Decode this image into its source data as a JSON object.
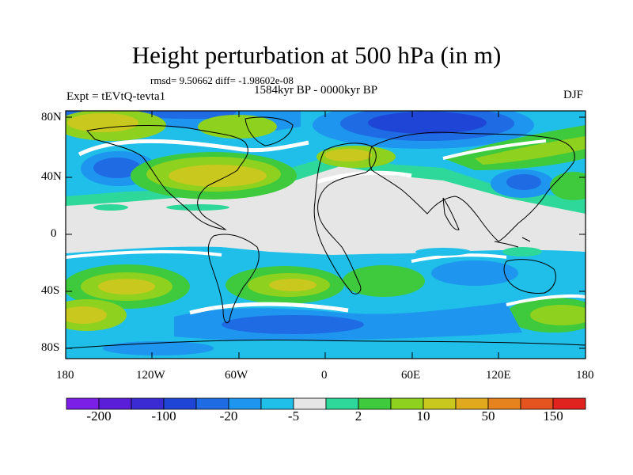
{
  "figure": {
    "title": "Height perturbation at 500 hPa (in m)",
    "stats": "rmsd= 9.50662 diff= -1.98602e-08",
    "period": "1584kyr BP - 0000kyr BP",
    "experiment": "Expt = tEVtQ-tevta1",
    "season": "DJF"
  },
  "axes": {
    "lat_ticks": [
      "80N",
      "40N",
      "0",
      "40S",
      "80S"
    ],
    "lon_ticks": [
      "180",
      "120W",
      "60W",
      "0",
      "60E",
      "120E",
      "180"
    ]
  },
  "colorbar": {
    "colors": [
      "#7b1fe6",
      "#5a1ed8",
      "#3a2bd2",
      "#1e45d6",
      "#1f6be4",
      "#1e95ee",
      "#1fbfea",
      "#e6e6e6",
      "#2ed89a",
      "#3fca3d",
      "#8ed11e",
      "#c8c81e",
      "#e0a91e",
      "#e7831e",
      "#e5541e",
      "#e0231e"
    ],
    "labels": [
      "-200",
      "-100",
      "-20",
      "-5",
      "2",
      "10",
      "50",
      "150"
    ]
  },
  "field_colors": {
    "neutral": "#e6e6e6",
    "band_white": "#ffffff"
  }
}
